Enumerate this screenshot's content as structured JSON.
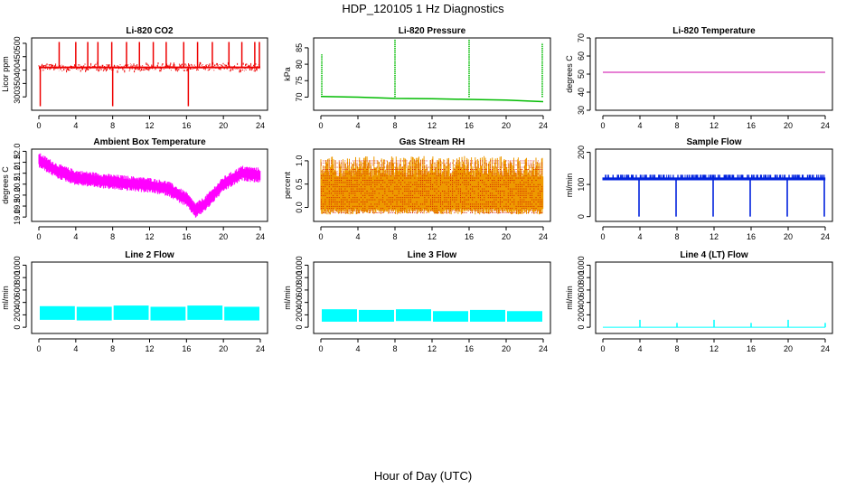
{
  "figure": {
    "title": "HDP_120105  1 Hz Diagnostics",
    "xlabel": "Hour of Day (UTC)"
  },
  "chart_data": [
    {
      "id": "co2",
      "type": "line",
      "title": "Li-820 CO2",
      "ylabel": "Licor ppm",
      "xlim": [
        0,
        24
      ],
      "ylim": [
        250,
        520
      ],
      "xticks": [
        0,
        4,
        8,
        12,
        16,
        20,
        24
      ],
      "yticks": [
        300,
        350,
        400,
        450,
        500
      ],
      "color": "#ee0000",
      "baseline": 410,
      "noise": 12,
      "spikes_up": [
        2.2,
        4.0,
        5.3,
        6.4,
        7.9,
        9.5,
        10.9,
        12.4,
        13.8,
        15.7,
        17.2,
        18.8,
        20.6,
        22.0,
        23.4,
        23.9
      ],
      "spike_up_value": 505,
      "spikes_down": [
        0.15,
        8.0,
        16.2
      ],
      "spike_down_value": 265
    },
    {
      "id": "pressure",
      "type": "line",
      "title": "Li-820 Pressure",
      "ylabel": "kPa",
      "xlim": [
        0,
        24
      ],
      "ylim": [
        66,
        88
      ],
      "xticks": [
        0,
        4,
        8,
        12,
        16,
        20,
        24
      ],
      "yticks": [
        70,
        75,
        80,
        85
      ],
      "color": "#00bb00",
      "segments": [
        [
          0,
          70.2
        ],
        [
          4,
          70.0
        ],
        [
          8,
          69.6
        ],
        [
          12,
          69.5
        ],
        [
          16,
          69.3
        ],
        [
          20,
          69.1
        ],
        [
          24,
          68.6
        ]
      ],
      "spikes": [
        [
          0.1,
          83.0
        ],
        [
          8.0,
          88.0
        ],
        [
          16.0,
          88.0
        ],
        [
          23.9,
          86.5
        ]
      ]
    },
    {
      "id": "licor_temp",
      "type": "line",
      "title": "Li-820 Temperature",
      "ylabel": "degrees C",
      "xlim": [
        0,
        24
      ],
      "ylim": [
        30,
        70
      ],
      "xticks": [
        0,
        4,
        8,
        12,
        16,
        20,
        24
      ],
      "yticks": [
        30,
        40,
        50,
        60,
        70
      ],
      "color": "#cc00aa",
      "value": 51.0
    },
    {
      "id": "box_temp",
      "type": "line",
      "title": "Ambient Box Temperature",
      "ylabel": "degrees C",
      "xlim": [
        0,
        24
      ],
      "ylim": [
        18.8,
        22.1
      ],
      "xticks": [
        0,
        4,
        8,
        12,
        16,
        20,
        24
      ],
      "yticks": [
        19.0,
        19.5,
        20.0,
        20.5,
        21.0,
        21.5,
        22.0
      ],
      "color": "#ff00ff",
      "trend": [
        [
          0,
          21.6
        ],
        [
          2,
          21.1
        ],
        [
          4,
          20.8
        ],
        [
          8,
          20.6
        ],
        [
          12,
          20.45
        ],
        [
          14,
          20.3
        ],
        [
          16,
          19.8
        ],
        [
          17,
          19.3
        ],
        [
          18,
          19.6
        ],
        [
          20,
          20.5
        ],
        [
          22,
          21.0
        ],
        [
          24,
          20.9
        ]
      ],
      "band": 0.35
    },
    {
      "id": "rh",
      "type": "line",
      "title": "Gas Stream RH",
      "ylabel": "percent",
      "xlim": [
        0,
        24
      ],
      "ylim": [
        -0.3,
        1.25
      ],
      "xticks": [
        0,
        4,
        8,
        12,
        16,
        20,
        24
      ],
      "yticks": [
        0.0,
        0.5,
        1.0
      ],
      "color": "#ee9900",
      "dot_color": "#cc0000",
      "low": -0.15,
      "high": 1.1
    },
    {
      "id": "sample_flow",
      "type": "line",
      "title": "Sample Flow",
      "ylabel": "ml/min",
      "xlim": [
        0,
        24
      ],
      "ylim": [
        -15,
        210
      ],
      "xticks": [
        0,
        4,
        8,
        12,
        16,
        20,
        24
      ],
      "yticks": [
        0,
        100,
        200
      ],
      "color": "#0022dd",
      "baseline": 118,
      "noise": 12,
      "dips": [
        4.0,
        8.0,
        12.0,
        16.0,
        20.0,
        24.0
      ],
      "dip_value": 0
    },
    {
      "id": "line2",
      "type": "line",
      "title": "Line 2 Flow",
      "ylabel": "ml/min",
      "xlim": [
        0,
        24
      ],
      "ylim": [
        -100,
        1050
      ],
      "xticks": [
        0,
        4,
        8,
        12,
        16,
        20,
        24
      ],
      "yticks": [
        0,
        200,
        400,
        600,
        800,
        1000
      ],
      "color": "#00ffff",
      "segments": [
        [
          0,
          4,
          120,
          340
        ],
        [
          4,
          8,
          110,
          330
        ],
        [
          8,
          12,
          120,
          350
        ],
        [
          12,
          16,
          110,
          330
        ],
        [
          16,
          20,
          120,
          350
        ],
        [
          20,
          24,
          110,
          330
        ]
      ]
    },
    {
      "id": "line3",
      "type": "line",
      "title": "Line 3 Flow",
      "ylabel": "ml/min",
      "xlim": [
        0,
        24
      ],
      "ylim": [
        -100,
        1050
      ],
      "xticks": [
        0,
        4,
        8,
        12,
        16,
        20,
        24
      ],
      "yticks": [
        0,
        200,
        400,
        600,
        800,
        1000
      ],
      "color": "#00ffff",
      "segments": [
        [
          0,
          4,
          90,
          290
        ],
        [
          4,
          8,
          90,
          280
        ],
        [
          8,
          12,
          100,
          290
        ],
        [
          12,
          16,
          90,
          260
        ],
        [
          16,
          20,
          90,
          280
        ],
        [
          20,
          24,
          90,
          260
        ]
      ]
    },
    {
      "id": "line4",
      "type": "line",
      "title": "Line 4 (LT) Flow",
      "ylabel": "ml/min",
      "xlim": [
        0,
        24
      ],
      "ylim": [
        -100,
        1050
      ],
      "xticks": [
        0,
        4,
        8,
        12,
        16,
        20,
        24
      ],
      "yticks": [
        0,
        200,
        400,
        600,
        800,
        1000
      ],
      "color": "#00ffff",
      "baseline": 0,
      "spikes": [
        [
          4.0,
          120
        ],
        [
          8.0,
          70
        ],
        [
          12.0,
          120
        ],
        [
          16.0,
          70
        ],
        [
          20.0,
          120
        ],
        [
          24.0,
          70
        ]
      ]
    }
  ]
}
